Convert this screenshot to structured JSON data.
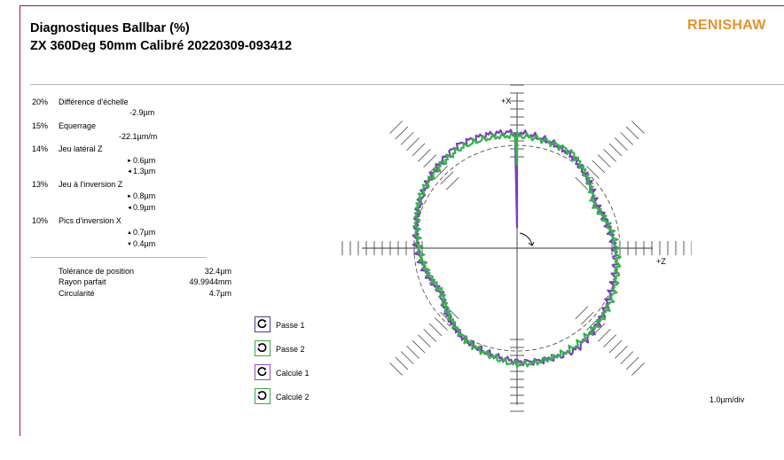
{
  "header": {
    "title": "Diagnostiques Ballbar (%)",
    "subtitle": "ZX 360Deg 50mm Calibré 20220309-093412",
    "brand": "RENISHAW"
  },
  "diagnostics": [
    {
      "pct": "20%",
      "label": "Différence d'échelle",
      "values": [
        {
          "arrow": "",
          "text": "-2.9µm"
        }
      ]
    },
    {
      "pct": "15%",
      "label": "Equerrage",
      "values": [
        {
          "arrow": "",
          "text": "-22.1µm/m"
        }
      ]
    },
    {
      "pct": "14%",
      "label": "Jeu latéral Z",
      "values": [
        {
          "arrow": "►",
          "text": "0.6µm"
        },
        {
          "arrow": "◄",
          "text": "1.3µm"
        }
      ]
    },
    {
      "pct": "13%",
      "label": "Jeu à l'inversion Z",
      "values": [
        {
          "arrow": "►",
          "text": "0.8µm"
        },
        {
          "arrow": "◄",
          "text": "0.9µm"
        }
      ]
    },
    {
      "pct": "10%",
      "label": "Pics d'inversion X",
      "values": [
        {
          "arrow": "▲",
          "text": "0.7µm"
        },
        {
          "arrow": "▼",
          "text": "0.4µm"
        }
      ]
    }
  ],
  "summary": [
    {
      "label": "Tolérance de position",
      "value": "32.4µm"
    },
    {
      "label": "Rayon parfait",
      "value": "49.9944mm"
    },
    {
      "label": "Circularité",
      "value": "4.7µm"
    }
  ],
  "legend": [
    {
      "label": "Passe 1",
      "color": "#4b3a9a",
      "rotation": "cw"
    },
    {
      "label": "Passe 2",
      "color": "#3aa84a",
      "rotation": "ccw"
    },
    {
      "label": "Calculé 1",
      "color": "#8a4fbd",
      "rotation": "cw"
    },
    {
      "label": "Calculé 2",
      "color": "#3aa84a",
      "rotation": "ccw"
    }
  ],
  "scale_label": "1.0µm/div",
  "chart_data": {
    "type": "polar-error",
    "axes": {
      "vertical": "+X",
      "horizontal": "+Z"
    },
    "scale_per_div_um": 1.0,
    "reference_circle_radius_mm": 50,
    "series": [
      {
        "name": "Passe 1",
        "color": "#7d3fb8",
        "angles_deg": [
          0,
          30,
          60,
          90,
          120,
          150,
          180,
          210,
          240,
          270,
          300,
          330
        ],
        "deviation_um": [
          1.6,
          0.6,
          -1.6,
          -0.7,
          0.3,
          1.8,
          1.3,
          0.3,
          -1.8,
          -0.4,
          0.7,
          2.0
        ]
      },
      {
        "name": "Passe 2",
        "color": "#34b24b",
        "angles_deg": [
          0,
          30,
          60,
          90,
          120,
          150,
          180,
          210,
          240,
          270,
          300,
          330
        ],
        "deviation_um": [
          1.2,
          0.9,
          -1.8,
          -0.5,
          0.6,
          1.4,
          1.7,
          0.2,
          -2.0,
          -0.6,
          0.9,
          1.5
        ]
      }
    ]
  }
}
